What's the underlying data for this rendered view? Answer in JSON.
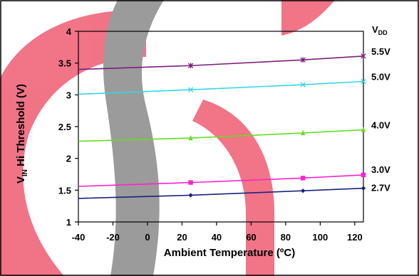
{
  "chart_data": {
    "type": "line",
    "xlabel": "Ambient Temperature (ºC)",
    "ylabel": {
      "prefix": "V",
      "sub": "IN",
      "suffix": " Hi Threshold (V)"
    },
    "legend_title": {
      "prefix": "V",
      "sub": "DD"
    },
    "xlim": [
      -40,
      125
    ],
    "ylim": [
      1,
      4
    ],
    "xticks": [
      -40,
      -20,
      0,
      20,
      40,
      60,
      80,
      100,
      120
    ],
    "yticks": [
      1,
      1.5,
      2,
      2.5,
      3,
      3.5,
      4
    ],
    "xtick_labels": [
      "-40",
      "-20",
      "0",
      "20",
      "40",
      "60",
      "80",
      "100",
      "120"
    ],
    "ytick_labels": [
      "1",
      "1.5",
      "2",
      "2.5",
      "3",
      "3.5",
      "4"
    ],
    "grid": false,
    "legend_placement": "right",
    "series": [
      {
        "name": "5.5V",
        "color": "#7b1f7b",
        "marker": "star",
        "x": [
          -40,
          25,
          90,
          125
        ],
        "y": [
          3.4,
          3.46,
          3.55,
          3.61
        ]
      },
      {
        "name": "5.0V",
        "color": "#33d6e6",
        "marker": "x",
        "x": [
          -40,
          25,
          90,
          125
        ],
        "y": [
          3.01,
          3.08,
          3.16,
          3.21
        ]
      },
      {
        "name": "4.0V",
        "color": "#66dd22",
        "marker": "triangle",
        "x": [
          -40,
          25,
          90,
          125
        ],
        "y": [
          2.27,
          2.32,
          2.4,
          2.45
        ]
      },
      {
        "name": "3.0V",
        "color": "#ff22cc",
        "marker": "square",
        "x": [
          -40,
          25,
          90,
          125
        ],
        "y": [
          1.56,
          1.62,
          1.69,
          1.74
        ]
      },
      {
        "name": "2.7V",
        "color": "#1a237e",
        "marker": "diamond",
        "x": [
          -40,
          25,
          90,
          125
        ],
        "y": [
          1.37,
          1.42,
          1.49,
          1.53
        ]
      }
    ]
  }
}
